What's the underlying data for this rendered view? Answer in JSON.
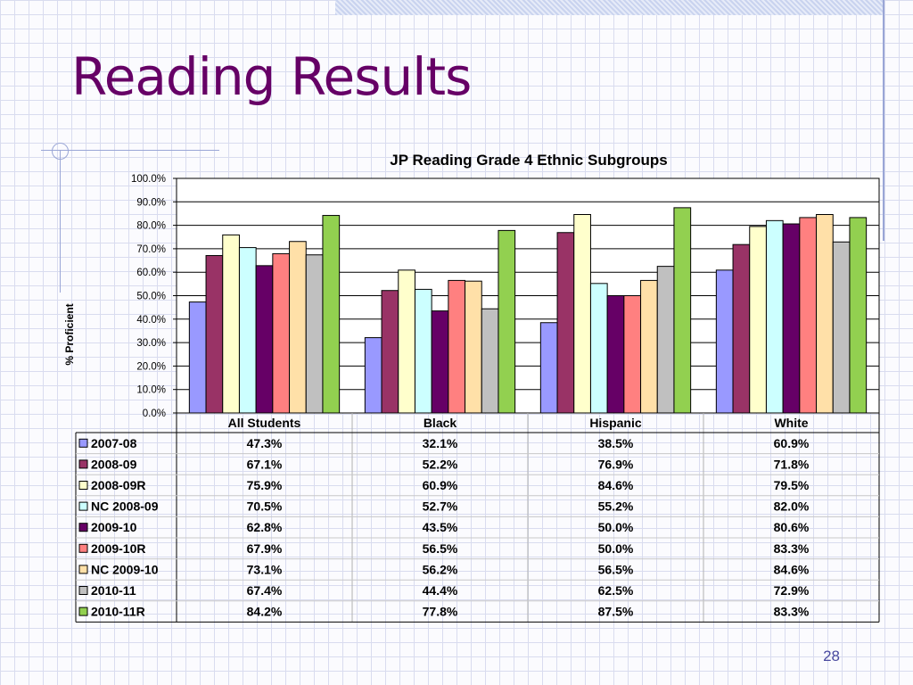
{
  "slide": {
    "title": "Reading Results",
    "page_number": "28"
  },
  "chart_data": {
    "type": "bar",
    "title": "JP Reading Grade 4 Ethnic Subgroups",
    "ylabel": "% Proficient",
    "xlabel": "",
    "ylim": [
      0,
      100
    ],
    "y_ticks": [
      "0.0%",
      "10.0%",
      "20.0%",
      "30.0%",
      "40.0%",
      "50.0%",
      "60.0%",
      "70.0%",
      "80.0%",
      "90.0%",
      "100.0%"
    ],
    "grid": true,
    "legend": "data-table",
    "categories": [
      "All Students",
      "Black",
      "Hispanic",
      "White"
    ],
    "series": [
      {
        "name": "2007-08",
        "color": "#9999ff",
        "values": [
          47.3,
          32.1,
          38.5,
          60.9
        ],
        "labels": [
          "47.3%",
          "32.1%",
          "38.5%",
          "60.9%"
        ]
      },
      {
        "name": "2008-09",
        "color": "#993366",
        "values": [
          67.1,
          52.2,
          76.9,
          71.8
        ],
        "labels": [
          "67.1%",
          "52.2%",
          "76.9%",
          "71.8%"
        ]
      },
      {
        "name": "2008-09R",
        "color": "#ffffcc",
        "values": [
          75.9,
          60.9,
          84.6,
          79.5
        ],
        "labels": [
          "75.9%",
          "60.9%",
          "84.6%",
          "79.5%"
        ]
      },
      {
        "name": "NC 2008-09",
        "color": "#ccffff",
        "values": [
          70.5,
          52.7,
          55.2,
          82.0
        ],
        "labels": [
          "70.5%",
          "52.7%",
          "55.2%",
          "82.0%"
        ]
      },
      {
        "name": "2009-10",
        "color": "#660066",
        "values": [
          62.8,
          43.5,
          50.0,
          80.6
        ],
        "labels": [
          "62.8%",
          "43.5%",
          "50.0%",
          "80.6%"
        ]
      },
      {
        "name": "2009-10R",
        "color": "#ff8080",
        "values": [
          67.9,
          56.5,
          50.0,
          83.3
        ],
        "labels": [
          "67.9%",
          "56.5%",
          "50.0%",
          "83.3%"
        ]
      },
      {
        "name": "NC 2009-10",
        "color": "#ffe0a8",
        "values": [
          73.1,
          56.2,
          56.5,
          84.6
        ],
        "labels": [
          "73.1%",
          "56.2%",
          "56.5%",
          "84.6%"
        ]
      },
      {
        "name": "2010-11",
        "color": "#c0c0c0",
        "values": [
          67.4,
          44.4,
          62.5,
          72.9
        ],
        "labels": [
          "67.4%",
          "44.4%",
          "62.5%",
          "72.9%"
        ]
      },
      {
        "name": "2010-11R",
        "color": "#92d050",
        "values": [
          84.2,
          77.8,
          87.5,
          83.3
        ],
        "labels": [
          "84.2%",
          "77.8%",
          "87.5%",
          "83.3%"
        ]
      }
    ]
  }
}
